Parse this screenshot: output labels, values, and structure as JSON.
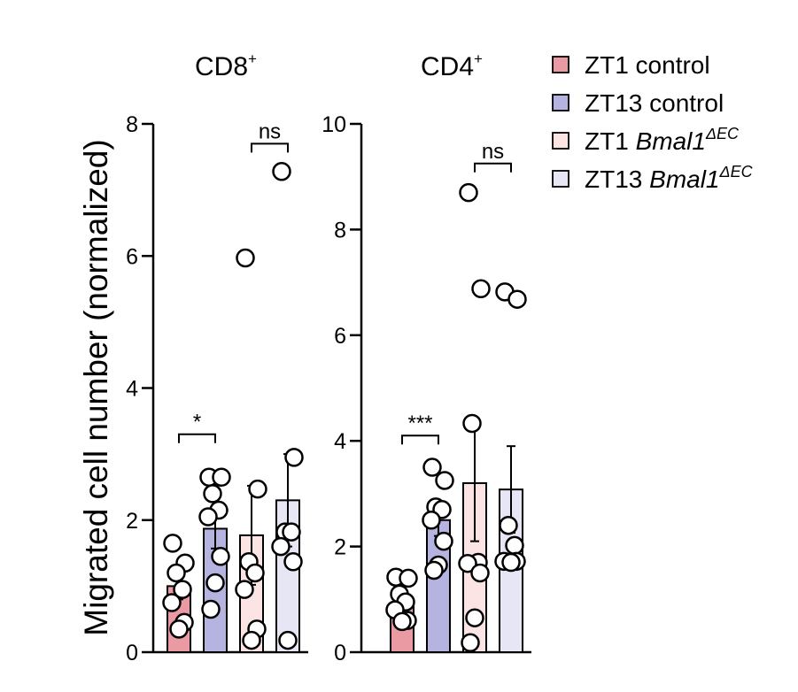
{
  "chart_data": {
    "type": "bar",
    "ylabel": "Migrated cell number (normalized)",
    "legend": [
      {
        "label": "ZT1 control",
        "italic": "",
        "sup": "",
        "color": "#ea9aa3"
      },
      {
        "label": "ZT13 control",
        "italic": "",
        "sup": "",
        "color": "#b5b3df"
      },
      {
        "label": "ZT1 ",
        "italic": "Bmal1",
        "sup": "ΔEC",
        "color": "#fce4e4"
      },
      {
        "label": "ZT13 ",
        "italic": "Bmal1",
        "sup": "ΔEC",
        "color": "#e6e6f4"
      }
    ],
    "panels": [
      {
        "title": "CD8",
        "title_sup": "+",
        "ylim": [
          0,
          8
        ],
        "yticks": [
          0,
          2,
          4,
          6,
          8
        ],
        "groups": [
          {
            "name": "ZT1 control",
            "mean": 1.0,
            "sem": 0.2,
            "points": [
              1.65,
              1.35,
              1.2,
              0.95,
              0.75,
              0.45,
              0.35
            ]
          },
          {
            "name": "ZT13 control",
            "mean": 1.87,
            "sem": 0.3,
            "points": [
              2.65,
              2.65,
              2.4,
              2.15,
              2.05,
              1.45,
              1.05,
              0.65
            ]
          },
          {
            "name": "ZT1 Bmal1ΔEC",
            "mean": 1.77,
            "sem": 0.75,
            "points": [
              5.97,
              2.47,
              1.37,
              1.2,
              0.95,
              0.35,
              0.18
            ]
          },
          {
            "name": "ZT13 Bmal1ΔEC",
            "mean": 2.3,
            "sem": 0.7,
            "points": [
              7.28,
              2.95,
              1.82,
              1.82,
              1.6,
              1.37,
              0.18
            ]
          }
        ],
        "significance": [
          {
            "label": "*",
            "from": 0,
            "to": 1,
            "y": 3.3
          },
          {
            "label": "ns",
            "from": 2,
            "to": 3,
            "y": 7.7
          }
        ]
      },
      {
        "title": "CD4",
        "title_sup": "+",
        "ylim": [
          0,
          10
        ],
        "yticks": [
          0,
          2,
          4,
          6,
          8,
          10
        ],
        "groups": [
          {
            "name": "ZT1 control",
            "mean": 0.9,
            "sem": 0.15,
            "points": [
              1.42,
              1.4,
              1.1,
              0.95,
              0.8,
              0.6,
              0.58
            ]
          },
          {
            "name": "ZT13 control",
            "mean": 2.5,
            "sem": 0.3,
            "points": [
              3.5,
              3.25,
              2.75,
              2.7,
              2.5,
              2.1,
              1.65,
              1.55
            ]
          },
          {
            "name": "ZT1 Bmal1ΔEC",
            "mean": 3.2,
            "sem": 1.1,
            "points": [
              8.7,
              6.88,
              4.33,
              1.7,
              1.68,
              1.5,
              0.65,
              0.18
            ]
          },
          {
            "name": "ZT13 Bmal1ΔEC",
            "mean": 3.08,
            "sem": 0.82,
            "points": [
              6.82,
              6.68,
              2.4,
              2.02,
              1.72,
              1.72,
              1.7
            ]
          }
        ],
        "significance": [
          {
            "label": "***",
            "from": 0,
            "to": 1,
            "y": 4.1
          },
          {
            "label": "ns",
            "from": 2,
            "to": 3,
            "y": 9.25
          }
        ]
      }
    ]
  }
}
